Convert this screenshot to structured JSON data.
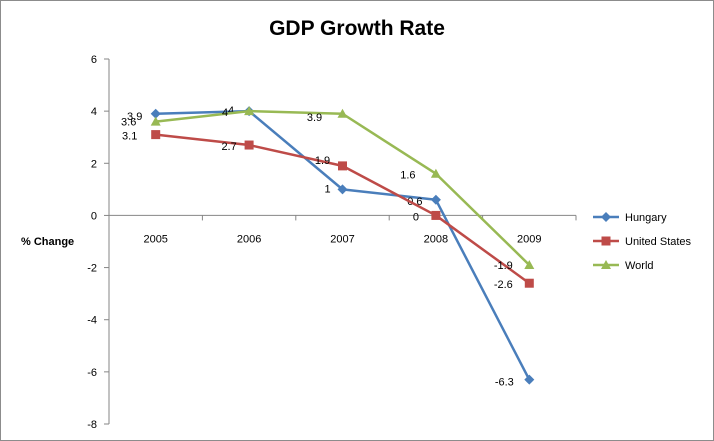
{
  "chart_data": {
    "type": "line",
    "title": "GDP Growth Rate",
    "xlabel": "",
    "ylabel": "% Change",
    "categories": [
      "2005",
      "2006",
      "2007",
      "2008",
      "2009"
    ],
    "ylim": [
      -8,
      6
    ],
    "yticks": [
      6,
      4,
      2,
      0,
      -2,
      -4,
      -6,
      -8
    ],
    "grid": false,
    "legend_position": "right",
    "series": [
      {
        "name": "Hungary",
        "values": [
          3.9,
          4,
          1,
          0.6,
          -6.3
        ],
        "labels": [
          "3.9",
          "4",
          "1",
          "0.6",
          "-6.3"
        ],
        "color": "#4a7ebb",
        "marker": "diamond"
      },
      {
        "name": "United States",
        "values": [
          3.1,
          2.7,
          1.9,
          0,
          -2.6
        ],
        "labels": [
          "3.1",
          "2.7",
          "1.9",
          "0",
          "-2.6"
        ],
        "color": "#be4b48",
        "marker": "square"
      },
      {
        "name": "World",
        "values": [
          3.6,
          4,
          3.9,
          1.6,
          -1.9
        ],
        "labels": [
          "3.6",
          "4",
          "3.9",
          "1.6",
          "-1.9"
        ],
        "color": "#98b954",
        "marker": "triangle"
      }
    ]
  }
}
